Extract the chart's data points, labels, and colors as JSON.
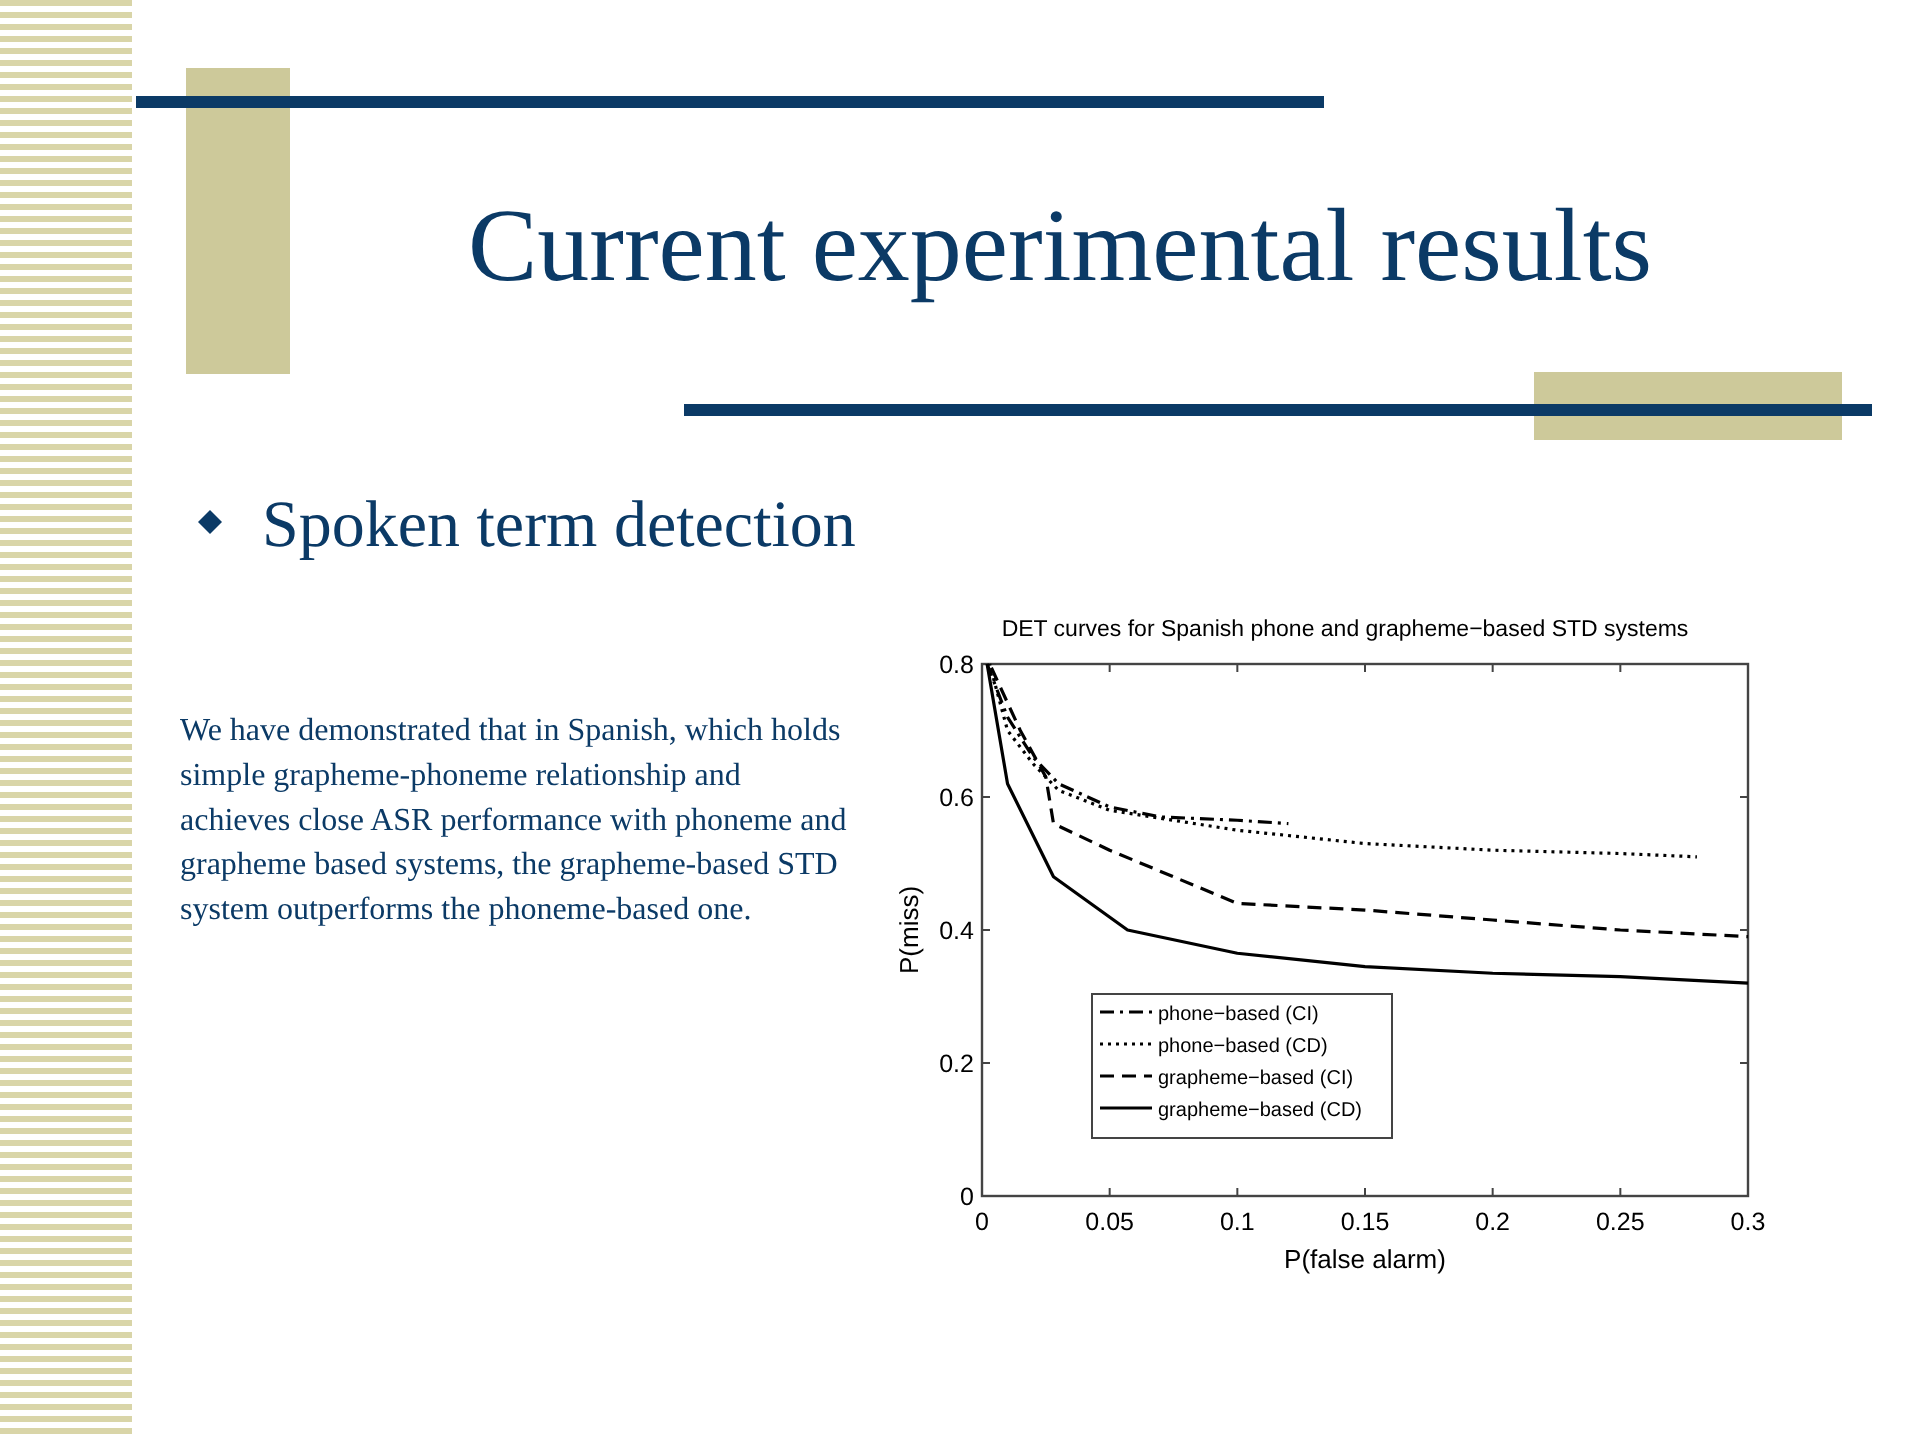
{
  "chart_data": {
    "type": "line",
    "title": "DET curves for Spanish phone and grapheme−based STD systems",
    "xlabel": "P(false alarm)",
    "ylabel": "P(miss)",
    "annotations": [
      "Current experimental results",
      "Spoken term detection",
      "We have demonstrated that in Spanish, which holds simple grapheme-phoneme relationship and achieves close ASR performance with phoneme and grapheme based systems, the grapheme-based STD system outperforms the phoneme-based one."
    ],
    "xlim": [
      0,
      0.3
    ],
    "ylim": [
      0,
      0.8
    ],
    "xticks": [
      0,
      0.05,
      0.1,
      0.15,
      0.2,
      0.25,
      0.3
    ],
    "yticks": [
      0,
      0.2,
      0.4,
      0.6,
      0.8
    ],
    "grid": false,
    "legend": "bottom left",
    "marker": "none",
    "series": [
      {
        "name": "phone−based (CI)",
        "color": "#000000",
        "line_style": "dashdot",
        "x": [
          0.002,
          0.01,
          0.02,
          0.03,
          0.05,
          0.07,
          0.1,
          0.12
        ],
        "values": [
          0.8,
          0.72,
          0.66,
          0.62,
          0.585,
          0.57,
          0.565,
          0.56
        ]
      },
      {
        "name": "phone−based (CD)",
        "color": "#000000",
        "line_style": "dotted",
        "x": [
          0.003,
          0.01,
          0.02,
          0.03,
          0.05,
          0.1,
          0.15,
          0.2,
          0.25,
          0.28
        ],
        "values": [
          0.8,
          0.7,
          0.65,
          0.61,
          0.58,
          0.55,
          0.53,
          0.52,
          0.515,
          0.51
        ]
      },
      {
        "name": "grapheme−based (CI)",
        "color": "#000000",
        "line_style": "dashed",
        "x": [
          0.003,
          0.015,
          0.025,
          0.028,
          0.05,
          0.1,
          0.15,
          0.2,
          0.25,
          0.3
        ],
        "values": [
          0.8,
          0.7,
          0.63,
          0.56,
          0.52,
          0.44,
          0.43,
          0.415,
          0.4,
          0.39
        ]
      },
      {
        "name": "grapheme−based (CD)",
        "color": "#000000",
        "line_style": "solid",
        "x": [
          0.002,
          0.01,
          0.028,
          0.057,
          0.1,
          0.15,
          0.2,
          0.25,
          0.3
        ],
        "values": [
          0.8,
          0.62,
          0.48,
          0.4,
          0.365,
          0.345,
          0.335,
          0.33,
          0.32
        ]
      }
    ]
  }
}
